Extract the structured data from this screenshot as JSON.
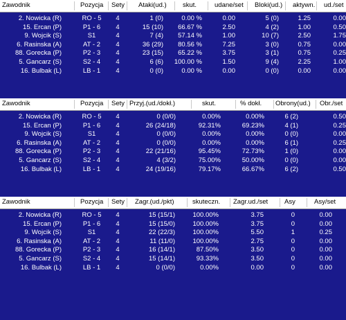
{
  "tables": [
    {
      "headers": [
        "Zawodnik",
        "Pozycja",
        "Sety",
        "Ataki(ud.)",
        "skut.",
        "udane/set",
        "Bloki(ud.)",
        "aktywn.",
        "ud./set"
      ],
      "rows": [
        [
          "2. Nowicka (R)",
          "RO - 5",
          "4",
          "1 (0)",
          "0.00 %",
          "0.00",
          "5 (0)",
          "1.25",
          "0.00"
        ],
        [
          "15. Ercan (P)",
          "P1 - 6",
          "4",
          "15 (10)",
          "66.67 %",
          "2.50",
          "4 (2)",
          "1.00",
          "0.50"
        ],
        [
          "9. Wojcik (S)",
          "S1",
          "4",
          "7 (4)",
          "57.14 %",
          "1.00",
          "10 (7)",
          "2.50",
          "1.75"
        ],
        [
          "6. Rasinska (A)",
          "AT - 2",
          "4",
          "36 (29)",
          "80.56 %",
          "7.25",
          "3 (0)",
          "0.75",
          "0.00"
        ],
        [
          "88. Gorecka (P)",
          "P2 - 3",
          "4",
          "23 (15)",
          "65.22 %",
          "3.75",
          "3 (1)",
          "0.75",
          "0.25"
        ],
        [
          "5. Gancarz (S)",
          "S2 - 4",
          "4",
          "6 (6)",
          "100.00 %",
          "1.50",
          "9 (4)",
          "2.25",
          "1.00"
        ],
        [
          "16. Bulbak (L)",
          "LB - 1",
          "4",
          "0 (0)",
          "0.00 %",
          "0.00",
          "0 (0)",
          "0.00",
          "0.00"
        ]
      ]
    },
    {
      "headers": [
        "Zawodnik",
        "Pozycja",
        "Sety",
        "Przyj.(ud./dokł.)",
        "skut.",
        "% dokł.",
        "Obrony(ud.)",
        "Obr./set"
      ],
      "rows": [
        [
          "2. Nowicka (R)",
          "RO - 5",
          "4",
          "0 (0/0)",
          "0.00%",
          "0.00%",
          "6 (2)",
          "0.50"
        ],
        [
          "15. Ercan (P)",
          "P1 - 6",
          "4",
          "26 (24/18)",
          "92.31%",
          "69.23%",
          "4 (1)",
          "0.25"
        ],
        [
          "9. Wojcik (S)",
          "S1",
          "4",
          "0 (0/0)",
          "0.00%",
          "0.00%",
          "0 (0)",
          "0.00"
        ],
        [
          "6. Rasinska (A)",
          "AT - 2",
          "4",
          "0 (0/0)",
          "0.00%",
          "0.00%",
          "6 (1)",
          "0.25"
        ],
        [
          "88. Gorecka (P)",
          "P2 - 3",
          "4",
          "22 (21/16)",
          "95.45%",
          "72.73%",
          "1 (0)",
          "0.00"
        ],
        [
          "5. Gancarz (S)",
          "S2 - 4",
          "4",
          "4 (3/2)",
          "75.00%",
          "50.00%",
          "0 (0)",
          "0.00"
        ],
        [
          "16. Bulbak (L)",
          "LB - 1",
          "4",
          "24 (19/16)",
          "79.17%",
          "66.67%",
          "6 (2)",
          "0.50"
        ]
      ]
    },
    {
      "headers": [
        "Zawodnik",
        "Pozycja",
        "Sety",
        "Zagr.(ud./pkt)",
        "skuteczn.",
        "Zagr.ud./set",
        "Asy",
        "Asy/set"
      ],
      "rows": [
        [
          "2. Nowicka (R)",
          "RO - 5",
          "4",
          "15 (15/1)",
          "100.00%",
          "3.75",
          "0",
          "0.00"
        ],
        [
          "15. Ercan (P)",
          "P1 - 6",
          "4",
          "15 (15/0)",
          "100.00%",
          "3.75",
          "0",
          "0.00"
        ],
        [
          "9. Wojcik (S)",
          "S1",
          "4",
          "22 (22/3)",
          "100.00%",
          "5.50",
          "1",
          "0.25"
        ],
        [
          "6. Rasinska (A)",
          "AT - 2",
          "4",
          "11 (11/0)",
          "100.00%",
          "2.75",
          "0",
          "0.00"
        ],
        [
          "88. Gorecka (P)",
          "P2 - 3",
          "4",
          "16 (14/1)",
          "87.50%",
          "3.50",
          "0",
          "0.00"
        ],
        [
          "5. Gancarz (S)",
          "S2 - 4",
          "4",
          "15 (14/1)",
          "93.33%",
          "3.50",
          "0",
          "0.00"
        ],
        [
          "16. Bulbak (L)",
          "LB - 1",
          "4",
          "0 (0/0)",
          "0.00%",
          "0.00",
          "0",
          "0.00"
        ]
      ]
    }
  ]
}
